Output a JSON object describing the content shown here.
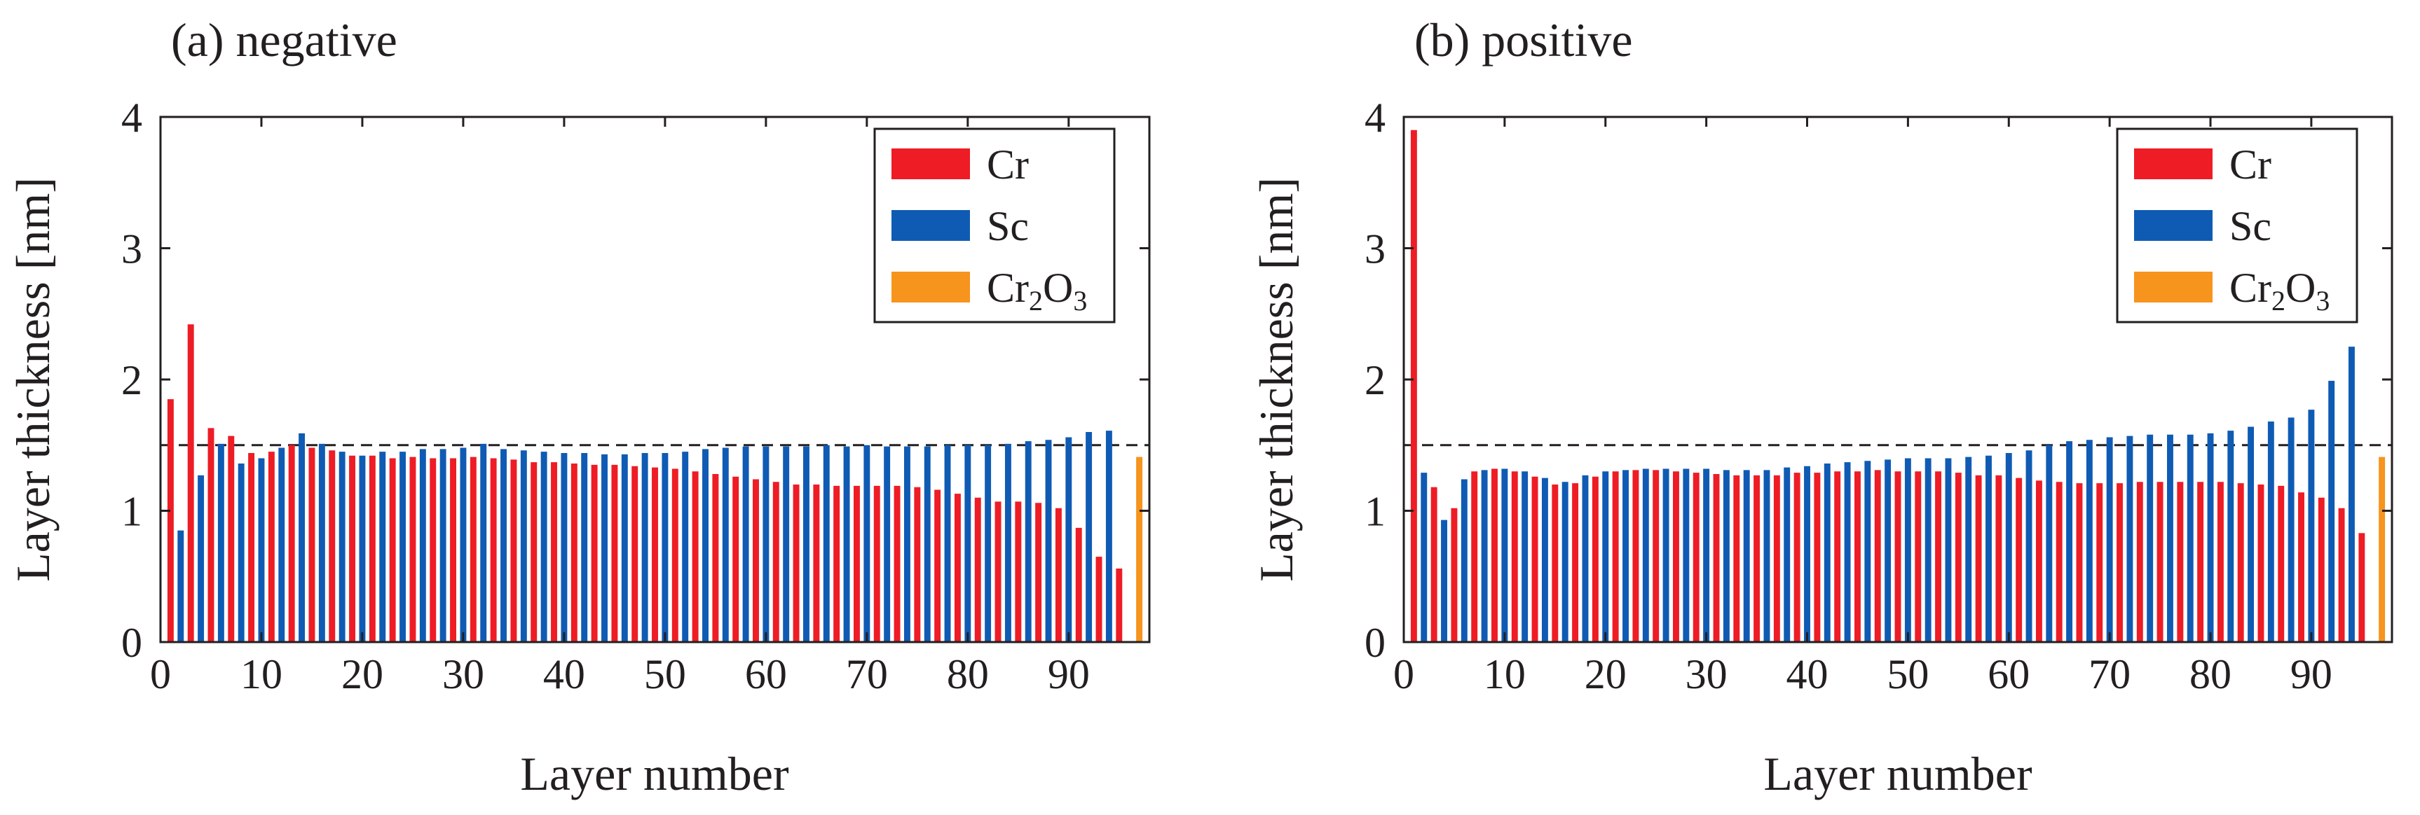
{
  "figure": {
    "caption": ""
  },
  "chart_data": [
    {
      "type": "bar",
      "title": "(a) negative",
      "xlabel": "Layer number",
      "ylabel": "Layer thickness [nm]",
      "xlim": [
        0,
        98
      ],
      "ylim": [
        0,
        4
      ],
      "xticks": [
        0,
        10,
        20,
        30,
        40,
        50,
        60,
        70,
        80,
        90
      ],
      "yticks": [
        0,
        1,
        2,
        3,
        4
      ],
      "reference_line": {
        "y": 1.5,
        "style": "dashed"
      },
      "legend": {
        "position": "top-right",
        "entries": [
          "Cr",
          "Sc",
          "Cr2O3"
        ]
      },
      "series": [
        {
          "name": "Cr",
          "color": "#ee1c25",
          "x": [
            1,
            3,
            5,
            7,
            9,
            11,
            13,
            15,
            17,
            19,
            21,
            23,
            25,
            27,
            29,
            31,
            33,
            35,
            37,
            39,
            41,
            43,
            45,
            47,
            49,
            51,
            53,
            55,
            57,
            59,
            61,
            63,
            65,
            67,
            69,
            71,
            73,
            75,
            77,
            79,
            81,
            83,
            85,
            87,
            89,
            91,
            93,
            95
          ],
          "values": [
            1.85,
            2.42,
            1.63,
            1.57,
            1.44,
            1.45,
            1.5,
            1.48,
            1.46,
            1.42,
            1.42,
            1.4,
            1.41,
            1.4,
            1.4,
            1.41,
            1.4,
            1.39,
            1.37,
            1.37,
            1.36,
            1.35,
            1.35,
            1.34,
            1.33,
            1.32,
            1.3,
            1.28,
            1.26,
            1.24,
            1.22,
            1.2,
            1.2,
            1.19,
            1.19,
            1.19,
            1.19,
            1.18,
            1.16,
            1.13,
            1.1,
            1.07,
            1.07,
            1.06,
            1.02,
            0.87,
            0.65,
            0.56
          ]
        },
        {
          "name": "Sc",
          "color": "#0f5bb4",
          "x": [
            2,
            4,
            6,
            8,
            10,
            12,
            14,
            16,
            18,
            20,
            22,
            24,
            26,
            28,
            30,
            32,
            34,
            36,
            38,
            40,
            42,
            44,
            46,
            48,
            50,
            52,
            54,
            56,
            58,
            60,
            62,
            64,
            66,
            68,
            70,
            72,
            74,
            76,
            78,
            80,
            82,
            84,
            86,
            88,
            90,
            92,
            94
          ],
          "values": [
            0.85,
            1.27,
            1.51,
            1.36,
            1.4,
            1.48,
            1.59,
            1.51,
            1.45,
            1.42,
            1.45,
            1.45,
            1.47,
            1.47,
            1.48,
            1.51,
            1.47,
            1.46,
            1.45,
            1.44,
            1.44,
            1.43,
            1.43,
            1.44,
            1.44,
            1.45,
            1.47,
            1.48,
            1.49,
            1.49,
            1.49,
            1.49,
            1.5,
            1.49,
            1.5,
            1.49,
            1.49,
            1.49,
            1.5,
            1.5,
            1.5,
            1.51,
            1.53,
            1.54,
            1.56,
            1.6,
            1.61
          ]
        },
        {
          "name": "Cr2O3",
          "color": "#f7941d",
          "x": [
            97
          ],
          "values": [
            1.41
          ]
        }
      ]
    },
    {
      "type": "bar",
      "title": "(b) positive",
      "xlabel": "Layer number",
      "ylabel": "Layer thickness [nm]",
      "xlim": [
        0,
        98
      ],
      "ylim": [
        0,
        4
      ],
      "xticks": [
        0,
        10,
        20,
        30,
        40,
        50,
        60,
        70,
        80,
        90
      ],
      "yticks": [
        0,
        1,
        2,
        3,
        4
      ],
      "reference_line": {
        "y": 1.5,
        "style": "dashed"
      },
      "legend": {
        "position": "top-right",
        "entries": [
          "Cr",
          "Sc",
          "Cr2O3"
        ]
      },
      "series": [
        {
          "name": "Cr",
          "color": "#ee1c25",
          "x": [
            1,
            3,
            5,
            7,
            9,
            11,
            13,
            15,
            17,
            19,
            21,
            23,
            25,
            27,
            29,
            31,
            33,
            35,
            37,
            39,
            41,
            43,
            45,
            47,
            49,
            51,
            53,
            55,
            57,
            59,
            61,
            63,
            65,
            67,
            69,
            71,
            73,
            75,
            77,
            79,
            81,
            83,
            85,
            87,
            89,
            91,
            93,
            95
          ],
          "values": [
            3.9,
            1.18,
            1.02,
            1.3,
            1.32,
            1.3,
            1.26,
            1.2,
            1.21,
            1.26,
            1.3,
            1.31,
            1.31,
            1.3,
            1.29,
            1.28,
            1.27,
            1.27,
            1.27,
            1.29,
            1.29,
            1.3,
            1.3,
            1.31,
            1.3,
            1.3,
            1.3,
            1.29,
            1.27,
            1.27,
            1.25,
            1.23,
            1.22,
            1.21,
            1.21,
            1.21,
            1.22,
            1.22,
            1.22,
            1.22,
            1.22,
            1.21,
            1.2,
            1.19,
            1.14,
            1.1,
            1.02,
            0.83
          ]
        },
        {
          "name": "Sc",
          "color": "#0f5bb4",
          "x": [
            2,
            4,
            6,
            8,
            10,
            12,
            14,
            16,
            18,
            20,
            22,
            24,
            26,
            28,
            30,
            32,
            34,
            36,
            38,
            40,
            42,
            44,
            46,
            48,
            50,
            52,
            54,
            56,
            58,
            60,
            62,
            64,
            66,
            68,
            70,
            72,
            74,
            76,
            78,
            80,
            82,
            84,
            86,
            88,
            90,
            92,
            94
          ],
          "values": [
            1.29,
            0.93,
            1.24,
            1.31,
            1.32,
            1.3,
            1.25,
            1.22,
            1.27,
            1.3,
            1.31,
            1.32,
            1.32,
            1.32,
            1.32,
            1.31,
            1.31,
            1.31,
            1.33,
            1.34,
            1.36,
            1.37,
            1.38,
            1.39,
            1.4,
            1.4,
            1.4,
            1.41,
            1.42,
            1.44,
            1.46,
            1.5,
            1.53,
            1.54,
            1.56,
            1.57,
            1.58,
            1.58,
            1.58,
            1.59,
            1.61,
            1.64,
            1.68,
            1.71,
            1.77,
            1.99,
            2.25
          ]
        },
        {
          "name": "Cr2O3",
          "color": "#f7941d",
          "x": [
            97
          ],
          "values": [
            1.41
          ]
        }
      ]
    }
  ]
}
